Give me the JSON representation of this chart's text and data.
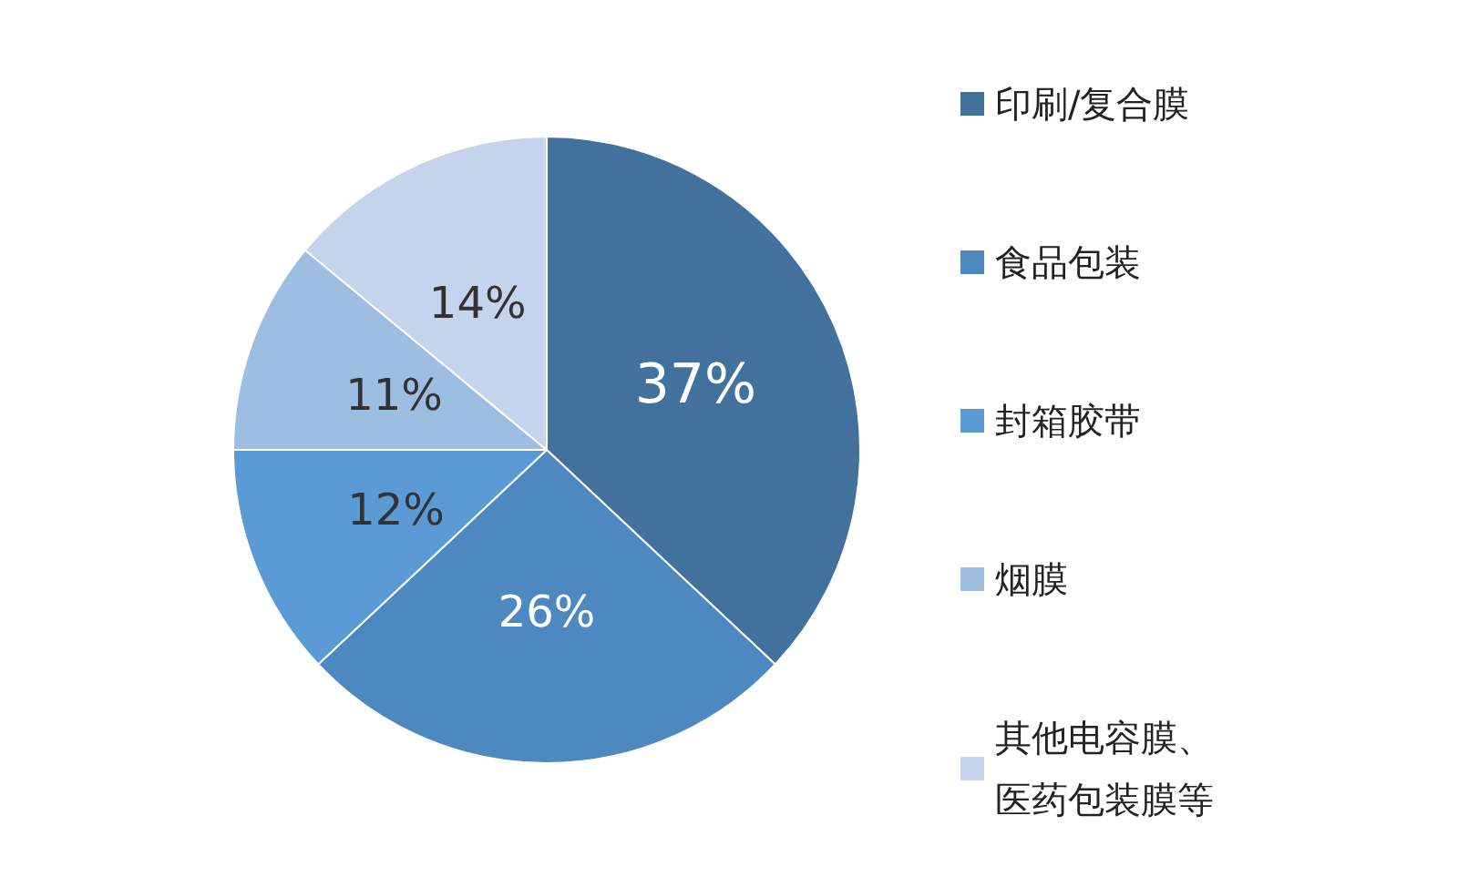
{
  "chart_data": {
    "type": "pie",
    "categories": [
      "印刷/复合膜",
      "食品包装",
      "封箱胶带",
      "烟膜",
      "其他电容膜、医药包装膜等"
    ],
    "values": [
      37,
      26,
      12,
      11,
      14
    ],
    "colors": [
      "#41719c",
      "#4e88c0",
      "#5b9bd5",
      "#9dbde3",
      "#c5d4ec"
    ],
    "value_labels": [
      "37%",
      "26%",
      "12%",
      "11%",
      "14%"
    ],
    "legend": "right"
  }
}
